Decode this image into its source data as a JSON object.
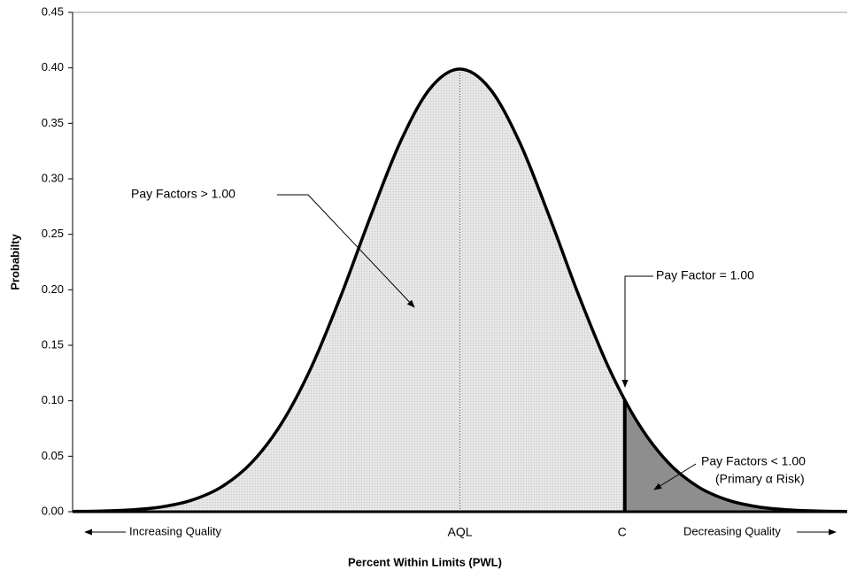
{
  "chart_data": {
    "type": "area",
    "x_label": "Percent Within Limits (PWL)",
    "y_label": "Probabilty",
    "xlim": [
      -3.9,
      3.9
    ],
    "ylim": [
      0,
      0.45
    ],
    "yticks": [
      {
        "value": 0,
        "label": "0.00"
      },
      0.05,
      {
        "value": 0.1,
        "label": "0.10"
      },
      0.15,
      {
        "value": 0.2,
        "label": "0.20"
      },
      0.25,
      {
        "value": 0.3,
        "label": "0.30"
      },
      0.35,
      {
        "value": 0.4,
        "label": "0.40"
      },
      0.45
    ],
    "x": [
      -3.9,
      -3.6,
      -3.3,
      -3.0,
      -2.7,
      -2.4,
      -2.1,
      -1.8,
      -1.5,
      -1.2,
      -0.9,
      -0.6,
      -0.3,
      0,
      0.3,
      0.6,
      0.9,
      1.2,
      1.5,
      1.8,
      2.1,
      2.4,
      2.7,
      3.0,
      3.3,
      3.6,
      3.9
    ],
    "series": [
      {
        "color": "#000000",
        "fill": "#e2e2e2",
        "fill_beyond_c": "#8e8e8e",
        "values": [
          0.0002,
          0.0006,
          0.0017,
          0.0044,
          0.0104,
          0.0224,
          0.044,
          0.079,
          0.1295,
          0.1942,
          0.2661,
          0.3332,
          0.3814,
          0.3989,
          0.3814,
          0.3332,
          0.2661,
          0.1942,
          0.1295,
          0.079,
          0.044,
          0.0224,
          0.0104,
          0.0044,
          0.0017,
          0.0006,
          0.0002
        ]
      }
    ],
    "markers": [
      {
        "label": "AQL",
        "x": 0,
        "y": 0.3989
      },
      {
        "label": "C",
        "x": 1.66,
        "y": 0.1006
      }
    ],
    "axis_notes": [
      "Increasing Quality",
      "Decreasing Quality"
    ],
    "annotations": [
      "Pay Factors > 1.00",
      "Pay Factor = 1.00",
      "Pay Factors < 1.00",
      "(Primary α Risk)"
    ]
  }
}
